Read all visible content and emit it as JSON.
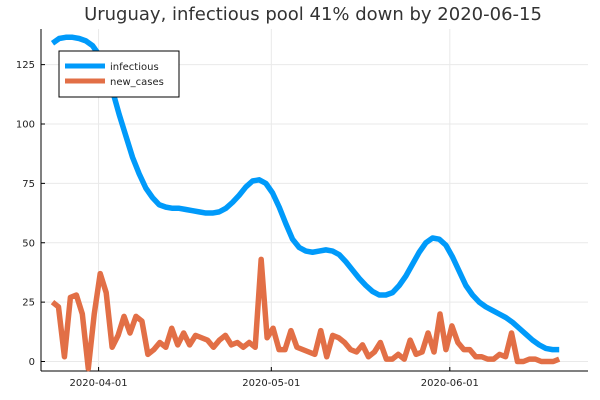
{
  "chart_data": {
    "type": "line",
    "title": "Uruguay, infectious pool 41% down by 2020-06-15",
    "xlabel": "",
    "ylabel": "",
    "x_start": "2020-03-24",
    "x_end": "2020-06-20",
    "xlim": [
      "2020-03-22",
      "2020-06-25"
    ],
    "ylim": [
      -4,
      140
    ],
    "x_ticks": [
      {
        "label": "2020-04-01",
        "date": "2020-04-01"
      },
      {
        "label": "2020-05-01",
        "date": "2020-05-01"
      },
      {
        "label": "2020-06-01",
        "date": "2020-06-01"
      }
    ],
    "y_ticks": [
      0,
      25,
      50,
      75,
      100,
      125
    ],
    "grid": true,
    "legend_position": "top-left",
    "series": [
      {
        "name": "infectious",
        "color": "#009AFA",
        "values": [
          134,
          136,
          136.5,
          136.5,
          136,
          135,
          133,
          129,
          123,
          114,
          104,
          95,
          86,
          79,
          73,
          69,
          66,
          65,
          64.5,
          64.5,
          64,
          63.5,
          63,
          62.5,
          62.5,
          63,
          64.5,
          67,
          70,
          73.5,
          76,
          76.5,
          75,
          71,
          65,
          58,
          51.5,
          48,
          46.5,
          46,
          46.5,
          47,
          46.5,
          45,
          42,
          38.5,
          35,
          32,
          29.5,
          28,
          28,
          29,
          32,
          36,
          41,
          46,
          50,
          52,
          51.5,
          49,
          44,
          38,
          32,
          28,
          25,
          23,
          21.5,
          20,
          18.5,
          16.5,
          14,
          11.5,
          9,
          7,
          5.5,
          5,
          5
        ]
      },
      {
        "name": "new_cases",
        "color": "#E26F46",
        "values": [
          25,
          23,
          2,
          27,
          28,
          20,
          -3,
          20,
          37,
          29,
          6,
          11,
          19,
          12,
          19,
          17,
          3,
          5,
          8,
          6,
          14,
          7,
          12,
          7,
          11,
          10,
          9,
          6,
          9,
          11,
          7,
          8,
          6,
          8,
          6,
          43,
          10,
          14,
          5,
          5,
          13,
          6,
          5,
          4,
          3,
          13,
          2,
          11,
          10,
          8,
          5,
          4,
          7,
          2,
          4,
          8,
          1,
          1,
          3,
          1,
          9,
          3,
          4,
          12,
          4,
          20,
          5,
          15,
          8,
          5,
          5,
          2,
          2,
          1,
          1,
          3,
          2,
          12,
          0,
          0,
          1,
          1,
          0,
          0,
          0,
          1
        ]
      }
    ]
  }
}
